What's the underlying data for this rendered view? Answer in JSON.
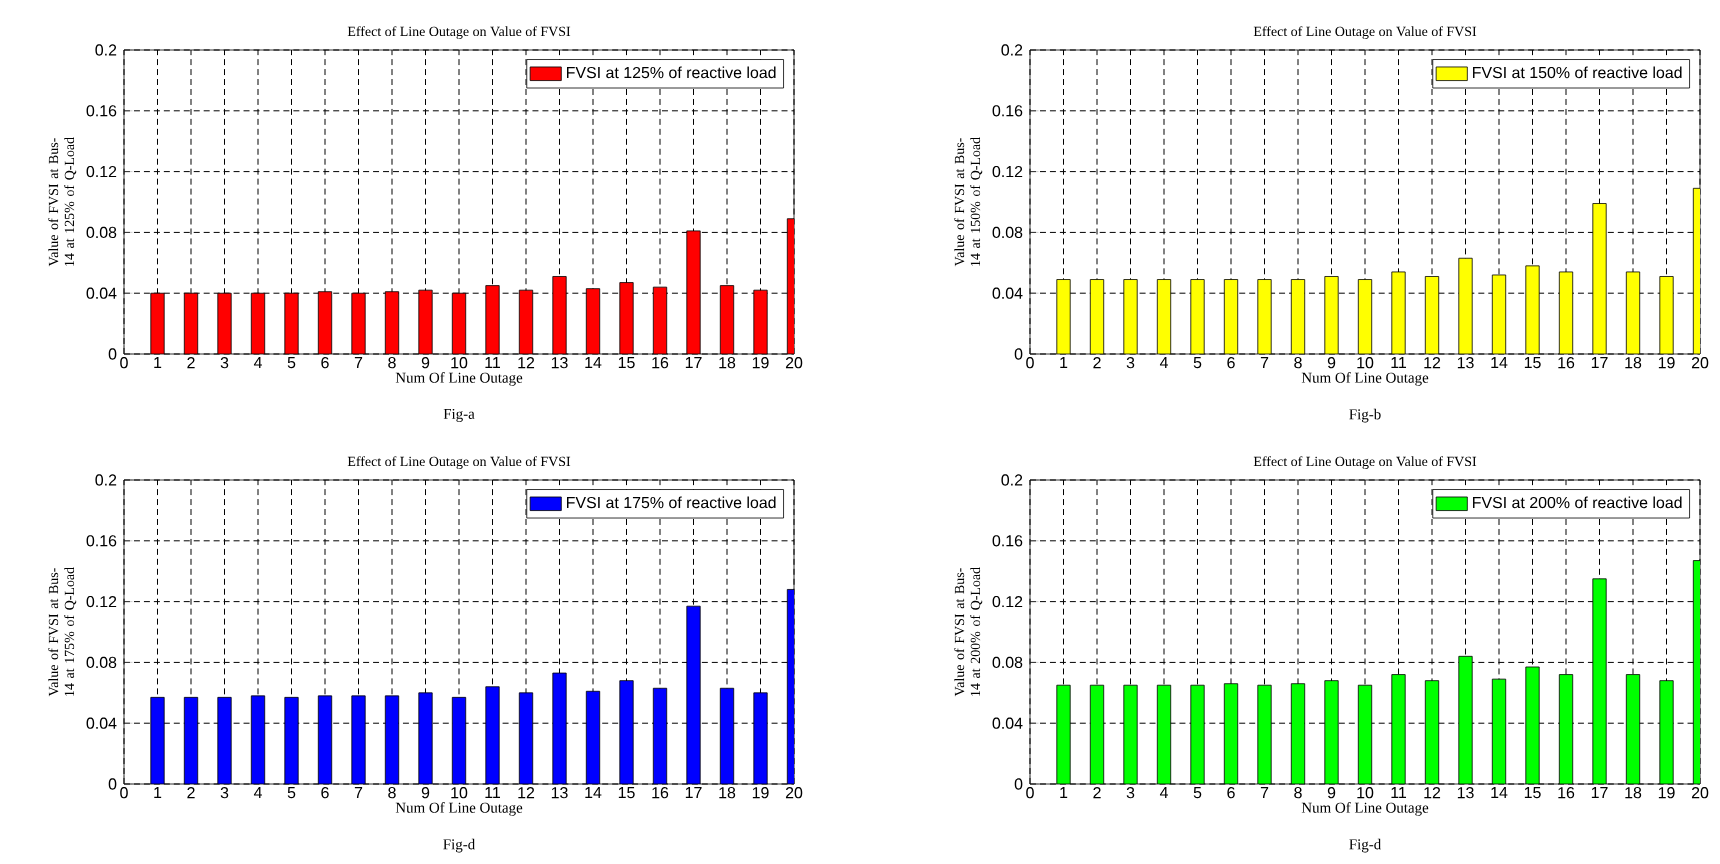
{
  "chart_data": [
    {
      "type": "bar",
      "title": "Effect of Line Outage on Value of FVSI",
      "xlabel": "Num Of Line Outage",
      "ylabel": "Value of FVSI at Bus-14 at 125% of Q-Load",
      "annotations": [
        "Fig-a"
      ],
      "x": [
        1,
        2,
        3,
        4,
        5,
        6,
        7,
        8,
        9,
        10,
        11,
        12,
        13,
        14,
        15,
        16,
        17,
        18,
        19,
        20
      ],
      "xlim": [
        0,
        20
      ],
      "xticks": [
        0,
        1,
        2,
        3,
        4,
        5,
        6,
        7,
        8,
        9,
        10,
        11,
        12,
        13,
        14,
        15,
        16,
        17,
        18,
        19,
        20
      ],
      "ylim": [
        0,
        0.2
      ],
      "yticks": [
        0,
        0.04,
        0.08,
        0.12,
        0.16,
        0.2
      ],
      "grid": true,
      "legend": "top right",
      "series": [
        {
          "name": "FVSI at 125% of reactive load",
          "color": "#ff0000",
          "values": [
            0.04,
            0.04,
            0.04,
            0.04,
            0.04,
            0.041,
            0.04,
            0.041,
            0.042,
            0.04,
            0.045,
            0.042,
            0.051,
            0.043,
            0.047,
            0.044,
            0.081,
            0.045,
            0.042,
            0.089
          ]
        }
      ]
    },
    {
      "type": "bar",
      "title": "Effect of Line Outage on Value of FVSI",
      "xlabel": "Num Of Line Outage",
      "ylabel": "Value of FVSI at Bus-14 at 150% of Q-Load",
      "annotations": [
        "Fig-b"
      ],
      "x": [
        1,
        2,
        3,
        4,
        5,
        6,
        7,
        8,
        9,
        10,
        11,
        12,
        13,
        14,
        15,
        16,
        17,
        18,
        19,
        20
      ],
      "xlim": [
        0,
        20
      ],
      "xticks": [
        0,
        1,
        2,
        3,
        4,
        5,
        6,
        7,
        8,
        9,
        10,
        11,
        12,
        13,
        14,
        15,
        16,
        17,
        18,
        19,
        20
      ],
      "ylim": [
        0,
        0.2
      ],
      "yticks": [
        0,
        0.04,
        0.08,
        0.12,
        0.16,
        0.2
      ],
      "grid": true,
      "legend": "top right",
      "series": [
        {
          "name": "FVSI at 150% of reactive load",
          "color": "#ffff00",
          "values": [
            0.049,
            0.049,
            0.049,
            0.049,
            0.049,
            0.049,
            0.049,
            0.049,
            0.051,
            0.049,
            0.054,
            0.051,
            0.063,
            0.052,
            0.058,
            0.054,
            0.099,
            0.054,
            0.051,
            0.109
          ]
        }
      ]
    },
    {
      "type": "bar",
      "title": "Effect of Line Outage on Value of FVSI",
      "xlabel": "Num Of Line Outage",
      "ylabel": "Value of FVSI at Bus-14 at 175% of Q-Load",
      "annotations": [
        "Fig-d"
      ],
      "x": [
        1,
        2,
        3,
        4,
        5,
        6,
        7,
        8,
        9,
        10,
        11,
        12,
        13,
        14,
        15,
        16,
        17,
        18,
        19,
        20
      ],
      "xlim": [
        0,
        20
      ],
      "xticks": [
        0,
        1,
        2,
        3,
        4,
        5,
        6,
        7,
        8,
        9,
        10,
        11,
        12,
        13,
        14,
        15,
        16,
        17,
        18,
        19,
        20
      ],
      "ylim": [
        0,
        0.2
      ],
      "yticks": [
        0,
        0.04,
        0.08,
        0.12,
        0.16,
        0.2
      ],
      "grid": true,
      "legend": "top right",
      "series": [
        {
          "name": "FVSI at 175% of reactive load",
          "color": "#0000ff",
          "values": [
            0.057,
            0.057,
            0.057,
            0.058,
            0.057,
            0.058,
            0.058,
            0.058,
            0.06,
            0.057,
            0.064,
            0.06,
            0.073,
            0.061,
            0.068,
            0.063,
            0.117,
            0.063,
            0.06,
            0.128
          ]
        }
      ]
    },
    {
      "type": "bar",
      "title": "Effect of Line Outage on Value of FVSI",
      "xlabel": "Num Of Line Outage",
      "ylabel": "Value of FVSI at Bus-14 at 200% of Q-Load",
      "annotations": [
        "Fig-d"
      ],
      "x": [
        1,
        2,
        3,
        4,
        5,
        6,
        7,
        8,
        9,
        10,
        11,
        12,
        13,
        14,
        15,
        16,
        17,
        18,
        19,
        20
      ],
      "xlim": [
        0,
        20
      ],
      "xticks": [
        0,
        1,
        2,
        3,
        4,
        5,
        6,
        7,
        8,
        9,
        10,
        11,
        12,
        13,
        14,
        15,
        16,
        17,
        18,
        19,
        20
      ],
      "ylim": [
        0,
        0.2
      ],
      "yticks": [
        0,
        0.04,
        0.08,
        0.12,
        0.16,
        0.2
      ],
      "grid": true,
      "legend": "top right",
      "series": [
        {
          "name": "FVSI at 200% of reactive load",
          "color": "#00ff00",
          "values": [
            0.065,
            0.065,
            0.065,
            0.065,
            0.065,
            0.066,
            0.065,
            0.066,
            0.068,
            0.065,
            0.072,
            0.068,
            0.084,
            0.069,
            0.077,
            0.072,
            0.135,
            0.072,
            0.068,
            0.147
          ]
        }
      ]
    }
  ]
}
